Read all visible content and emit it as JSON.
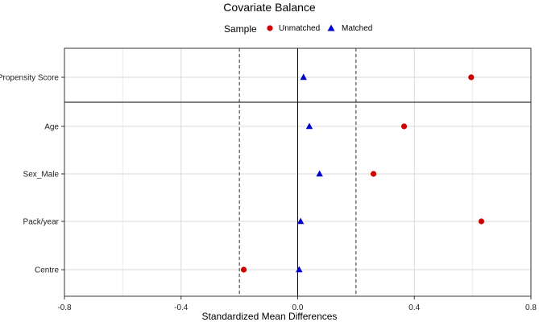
{
  "chart_data": {
    "type": "scatter",
    "title": "Covariate Balance",
    "xlabel": "Standardized Mean Differences",
    "ylabel": "",
    "xlim": [
      -0.8,
      0.8
    ],
    "xticks": [
      "-0.8",
      "-0.4",
      "0.0",
      "0.4",
      "0.8"
    ],
    "categories": [
      "Propensity Score",
      "Age",
      "Sex_Male",
      "Pack/year",
      "Centre"
    ],
    "threshold_lines": [
      -0.2,
      0.2
    ],
    "grid": true,
    "legend": {
      "title": "Sample",
      "position": "top",
      "entries": [
        "Unmatched",
        "Matched"
      ]
    },
    "series": [
      {
        "name": "Unmatched",
        "marker": "circle",
        "color": "#cc0000",
        "values": [
          0.595,
          0.365,
          0.26,
          0.63,
          -0.185
        ]
      },
      {
        "name": "Matched",
        "marker": "triangle",
        "color": "#0000cc",
        "values": [
          0.02,
          0.04,
          0.075,
          0.01,
          0.005
        ]
      }
    ]
  }
}
